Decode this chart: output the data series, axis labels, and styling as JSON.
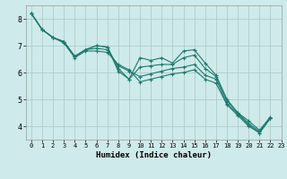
{
  "xlabel": "Humidex (Indice chaleur)",
  "bg_color": "#ceeaea",
  "line_color": "#1e7a6e",
  "grid_color": "#b0cccc",
  "xlim": [
    -0.5,
    23
  ],
  "ylim": [
    3.5,
    8.5
  ],
  "yticks": [
    4,
    5,
    6,
    7,
    8
  ],
  "xticks": [
    0,
    1,
    2,
    3,
    4,
    5,
    6,
    7,
    8,
    9,
    10,
    11,
    12,
    13,
    14,
    15,
    16,
    17,
    18,
    19,
    20,
    21,
    22,
    23
  ],
  "lines": [
    [
      8.2,
      7.6,
      7.3,
      7.15,
      6.6,
      6.85,
      7.0,
      6.95,
      6.15,
      5.75,
      6.55,
      6.45,
      6.55,
      6.35,
      6.8,
      6.85,
      6.35,
      5.9,
      5.0,
      4.5,
      4.2,
      3.85,
      4.35
    ],
    [
      8.2,
      7.6,
      7.3,
      7.15,
      6.6,
      6.85,
      7.0,
      6.95,
      6.05,
      5.75,
      6.2,
      6.25,
      6.3,
      6.3,
      6.55,
      6.65,
      6.15,
      5.85,
      4.95,
      4.5,
      4.1,
      3.8,
      4.3
    ],
    [
      8.2,
      7.6,
      7.3,
      7.15,
      6.6,
      6.85,
      6.9,
      6.85,
      6.25,
      6.05,
      5.85,
      5.95,
      6.05,
      6.15,
      6.2,
      6.3,
      5.9,
      5.75,
      4.85,
      4.45,
      4.05,
      3.75,
      4.3
    ],
    [
      8.2,
      7.6,
      7.3,
      7.1,
      6.55,
      6.8,
      6.8,
      6.75,
      6.3,
      6.1,
      5.65,
      5.75,
      5.85,
      5.95,
      6.0,
      6.1,
      5.75,
      5.6,
      4.8,
      4.4,
      4.0,
      3.75,
      4.3
    ]
  ]
}
